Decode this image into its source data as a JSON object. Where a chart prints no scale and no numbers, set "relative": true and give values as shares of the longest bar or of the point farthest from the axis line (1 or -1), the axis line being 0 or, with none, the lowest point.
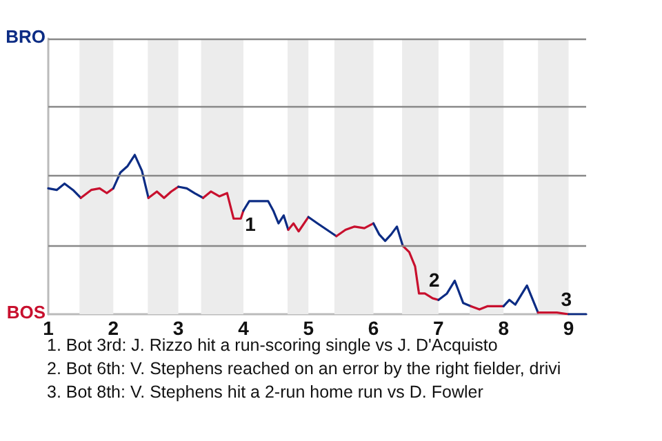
{
  "chart_data": {
    "type": "line",
    "relative": true,
    "series": [
      {
        "color": "#0c2c84",
        "x": [
          1,
          1.13,
          1.25,
          1.38,
          1.5
        ],
        "values": [
          0.79,
          0.78,
          0.82,
          0.78,
          0.73
        ]
      },
      {
        "color": "#c8102e",
        "x": [
          1.5,
          1.66,
          1.79,
          1.9,
          2
        ],
        "values": [
          0.73,
          0.78,
          0.79,
          0.76,
          0.79
        ]
      },
      {
        "color": "#0c2c84",
        "x": [
          2,
          2.11,
          2.22,
          2.33,
          2.44,
          2.54
        ],
        "values": [
          0.79,
          0.89,
          0.93,
          1,
          0.9,
          0.73
        ]
      },
      {
        "color": "#c8102e",
        "x": [
          2.54,
          2.67,
          2.78,
          2.89,
          3
        ],
        "values": [
          0.73,
          0.77,
          0.73,
          0.77,
          0.8
        ]
      },
      {
        "color": "#0c2c84",
        "x": [
          3,
          3.13,
          3.25,
          3.38
        ],
        "values": [
          0.8,
          0.79,
          0.76,
          0.73
        ]
      },
      {
        "color": "#c8102e",
        "x": [
          3.38,
          3.5,
          3.63,
          3.75,
          3.85,
          3.96,
          4
        ],
        "values": [
          0.73,
          0.77,
          0.74,
          0.76,
          0.6,
          0.6,
          0.65
        ]
      },
      {
        "color": "#0c2c84",
        "x": [
          4,
          4.09,
          4.38,
          4.46,
          4.54,
          4.62,
          4.69
        ],
        "values": [
          0.65,
          0.71,
          0.71,
          0.65,
          0.57,
          0.62,
          0.53
        ]
      },
      {
        "color": "#c8102e",
        "x": [
          4.69,
          4.77,
          4.85,
          5
        ],
        "values": [
          0.53,
          0.57,
          0.52,
          0.61
        ]
      },
      {
        "color": "#0c2c84",
        "x": [
          5,
          5.14,
          5.43
        ],
        "values": [
          0.61,
          0.57,
          0.49
        ]
      },
      {
        "color": "#c8102e",
        "x": [
          5.43,
          5.57,
          5.71,
          5.86,
          6
        ],
        "values": [
          0.49,
          0.53,
          0.55,
          0.54,
          0.57
        ]
      },
      {
        "color": "#0c2c84",
        "x": [
          6,
          6.09,
          6.18,
          6.27,
          6.36,
          6.45
        ],
        "values": [
          0.57,
          0.5,
          0.46,
          0.5,
          0.55,
          0.43
        ]
      },
      {
        "color": "#c8102e",
        "x": [
          6.45,
          6.55,
          6.64,
          6.7,
          6.79,
          6.91,
          7
        ],
        "values": [
          0.43,
          0.39,
          0.3,
          0.13,
          0.13,
          0.1,
          0.09
        ]
      },
      {
        "color": "#0c2c84",
        "x": [
          7,
          7.13,
          7.25,
          7.38,
          7.5
        ],
        "values": [
          0.09,
          0.13,
          0.21,
          0.07,
          0.05
        ]
      },
      {
        "color": "#c8102e",
        "x": [
          7.5,
          7.63,
          7.75,
          8
        ],
        "values": [
          0.05,
          0.03,
          0.05,
          0.05
        ]
      },
      {
        "color": "#0c2c84",
        "x": [
          8,
          8.09,
          8.18,
          8.36,
          8.53
        ],
        "values": [
          0.05,
          0.09,
          0.06,
          0.18,
          0.01
        ]
      },
      {
        "color": "#c8102e",
        "x": [
          8.53,
          8.75,
          8.82,
          9
        ],
        "values": [
          0.01,
          0.01,
          0.01,
          0
        ]
      },
      {
        "color": "#0c2c84",
        "x": [
          9,
          9.27
        ],
        "values": [
          0,
          0
        ]
      }
    ],
    "xlim": [
      1,
      9.27
    ],
    "xticks": [
      1,
      2,
      3,
      4,
      5,
      6,
      7,
      8,
      9
    ],
    "ref_lines": [
      {
        "axis": "y",
        "value": 0.43,
        "color": "#888888"
      },
      {
        "axis": "y",
        "value": 0.87,
        "color": "#888888"
      },
      {
        "axis": "y",
        "value": 1.3,
        "color": "#888888"
      },
      {
        "axis": "y",
        "value": 1.73,
        "color": "#888888"
      }
    ],
    "marker": "none",
    "bands": [
      {
        "axis": "x",
        "from": 1.48,
        "to": 2,
        "color": "#ececec"
      },
      {
        "axis": "x",
        "from": 2.53,
        "to": 3,
        "color": "#ececec"
      },
      {
        "axis": "x",
        "from": 3.35,
        "to": 4,
        "color": "#ececec"
      },
      {
        "axis": "x",
        "from": 4.68,
        "to": 5,
        "color": "#ececec"
      },
      {
        "axis": "x",
        "from": 5.4,
        "to": 6,
        "color": "#ececec"
      },
      {
        "axis": "x",
        "from": 6.44,
        "to": 7,
        "color": "#ececec"
      },
      {
        "axis": "x",
        "from": 7.48,
        "to": 8,
        "color": "#ececec"
      },
      {
        "axis": "x",
        "from": 8.53,
        "to": 9,
        "color": "#ececec"
      }
    ],
    "annotations": [
      "BRO",
      "BOS",
      {
        "text": "1",
        "x": 3.96,
        "y": 0.6
      },
      {
        "text": "2",
        "x": 6.79,
        "y": 0.13
      },
      {
        "text": "3",
        "x": 8.82,
        "y": 0.01
      },
      "1. Bot 3rd: J. Rizzo hit a run-scoring single vs J. D'Acquisto",
      "2. Bot 6th: V. Stephens reached on an error by the right fielder, drivi",
      "3. Bot 8th: V. Stephens hit a 2-run home run vs D. Fowler"
    ]
  }
}
